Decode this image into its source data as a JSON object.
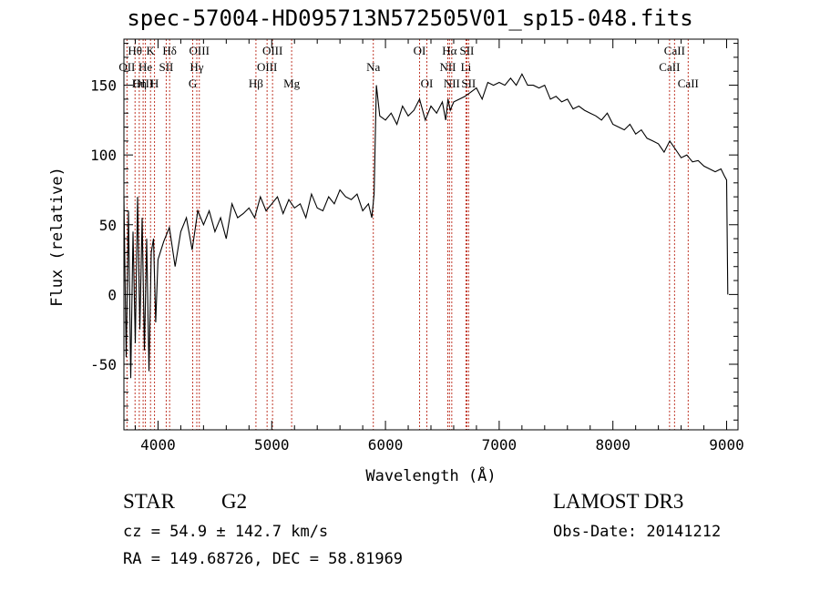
{
  "title": "spec-57004-HD095713N572505V01_sp15-048.fits",
  "info": {
    "class": "STAR",
    "subclass": "G2",
    "survey": "LAMOST DR3",
    "cz": "cz = 54.9 ± 142.7 km/s",
    "obs_date": "Obs-Date: 20141212",
    "coords": "RA = 149.68726, DEC =  58.81969"
  },
  "chart_data": {
    "type": "line",
    "title": "spec-57004-HD095713N572505V01_sp15-048.fits",
    "xlabel": "Wavelength (Å)",
    "ylabel": "Flux (relative)",
    "xlim": [
      3700,
      9100
    ],
    "ylim": [
      -97,
      183
    ],
    "x_ticks": [
      4000,
      5000,
      6000,
      7000,
      8000,
      9000
    ],
    "y_ticks": [
      -50,
      0,
      50,
      100,
      150
    ],
    "grid": false,
    "series": [
      {
        "x": [
          3700,
          3720,
          3740,
          3760,
          3780,
          3800,
          3820,
          3840,
          3860,
          3880,
          3900,
          3920,
          3940,
          3960,
          3980,
          4000,
          4050,
          4100,
          4150,
          4200,
          4250,
          4300,
          4350,
          4400,
          4450,
          4500,
          4550,
          4600,
          4650,
          4700,
          4750,
          4800,
          4850,
          4900,
          4950,
          5000,
          5050,
          5100,
          5150,
          5200,
          5250,
          5300,
          5350,
          5400,
          5450,
          5500,
          5550,
          5600,
          5650,
          5700,
          5750,
          5800,
          5850,
          5880,
          5900,
          5920,
          5950,
          6000,
          6050,
          6100,
          6150,
          6200,
          6250,
          6300,
          6350,
          6400,
          6450,
          6500,
          6530,
          6550,
          6570,
          6600,
          6650,
          6700,
          6750,
          6800,
          6850,
          6900,
          6950,
          7000,
          7050,
          7100,
          7150,
          7200,
          7250,
          7300,
          7350,
          7400,
          7450,
          7500,
          7550,
          7600,
          7650,
          7700,
          7750,
          7800,
          7850,
          7900,
          7950,
          8000,
          8050,
          8100,
          8150,
          8200,
          8250,
          8300,
          8350,
          8400,
          8450,
          8500,
          8550,
          8600,
          8650,
          8700,
          8750,
          8800,
          8850,
          8900,
          8950,
          8980,
          9000,
          9010
        ],
        "y": [
          70,
          -45,
          60,
          -60,
          45,
          -35,
          70,
          -25,
          55,
          -40,
          40,
          -55,
          30,
          40,
          -20,
          25,
          38,
          48,
          20,
          45,
          55,
          32,
          60,
          50,
          60,
          45,
          55,
          40,
          65,
          55,
          58,
          62,
          55,
          70,
          60,
          65,
          70,
          58,
          68,
          62,
          65,
          55,
          72,
          62,
          60,
          70,
          65,
          75,
          70,
          68,
          72,
          60,
          65,
          55,
          72,
          150,
          128,
          125,
          130,
          122,
          135,
          128,
          132,
          140,
          125,
          135,
          130,
          138,
          125,
          140,
          132,
          138,
          140,
          142,
          145,
          148,
          140,
          152,
          150,
          152,
          150,
          155,
          150,
          158,
          150,
          150,
          148,
          150,
          140,
          142,
          138,
          140,
          133,
          135,
          132,
          130,
          128,
          125,
          130,
          122,
          120,
          118,
          122,
          115,
          118,
          112,
          110,
          108,
          102,
          110,
          104,
          98,
          100,
          95,
          96,
          92,
          90,
          88,
          90,
          85,
          82,
          0
        ]
      }
    ],
    "spectral_lines": [
      {
        "name": "Hθ",
        "wavelength": 3798,
        "row": 1
      },
      {
        "name": "OII",
        "wavelength": 3727,
        "row": 2
      },
      {
        "name": "OIII",
        "wavelength": 3869,
        "row": 3
      },
      {
        "name": "K",
        "wavelength": 3934,
        "row": 1
      },
      {
        "name": "He",
        "wavelength": 3889,
        "row": 2
      },
      {
        "name": "Hη",
        "wavelength": 3835,
        "row": 3
      },
      {
        "name": "H",
        "wavelength": 3969,
        "row": 3
      },
      {
        "name": "Hδ",
        "wavelength": 4102,
        "row": 1
      },
      {
        "name": "SII",
        "wavelength": 4072,
        "row": 2
      },
      {
        "name": "OIII",
        "wavelength": 4363,
        "row": 1
      },
      {
        "name": "Hγ",
        "wavelength": 4341,
        "row": 2
      },
      {
        "name": "G",
        "wavelength": 4305,
        "row": 3
      },
      {
        "name": "Hβ",
        "wavelength": 4861,
        "row": 3
      },
      {
        "name": "OIII",
        "wavelength": 5007,
        "row": 1
      },
      {
        "name": "OIII",
        "wavelength": 4959,
        "row": 2
      },
      {
        "name": "Mg",
        "wavelength": 5175,
        "row": 3
      },
      {
        "name": "Na",
        "wavelength": 5893,
        "row": 2
      },
      {
        "name": "OI",
        "wavelength": 6300,
        "row": 1
      },
      {
        "name": "OI",
        "wavelength": 6364,
        "row": 3
      },
      {
        "name": "Hα",
        "wavelength": 6563,
        "row": 1
      },
      {
        "name": "NII",
        "wavelength": 6548,
        "row": 2
      },
      {
        "name": "NII",
        "wavelength": 6583,
        "row": 3
      },
      {
        "name": "SII",
        "wavelength": 6716,
        "row": 1
      },
      {
        "name": "Li",
        "wavelength": 6708,
        "row": 2
      },
      {
        "name": "SII",
        "wavelength": 6731,
        "row": 3
      },
      {
        "name": "CaII",
        "wavelength": 8542,
        "row": 1
      },
      {
        "name": "CaII",
        "wavelength": 8498,
        "row": 2
      },
      {
        "name": "CaII",
        "wavelength": 8662,
        "row": 3
      }
    ],
    "line_color": "#000000",
    "marker_color": "#c0392b"
  }
}
